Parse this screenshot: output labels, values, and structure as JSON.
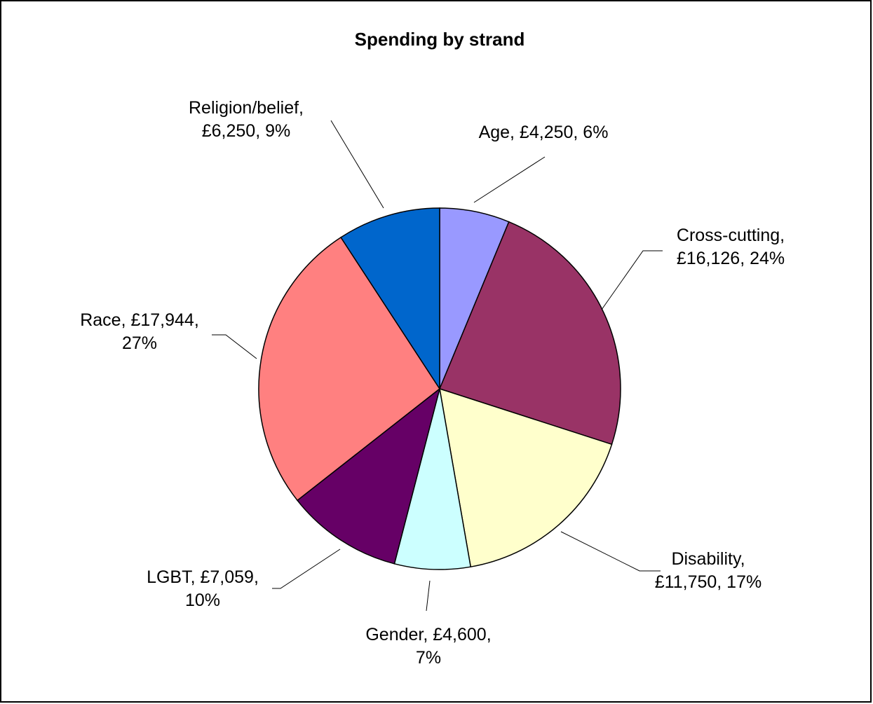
{
  "chart_data": {
    "type": "pie",
    "title": "Spending by strand",
    "start_angle_deg": 0,
    "direction": "clockwise",
    "legend": "none",
    "slices": [
      {
        "name": "Age",
        "value": 4250,
        "percent": "6%",
        "color": "#9999ff",
        "label_lines": [
          "Age, £4,250, 6%"
        ]
      },
      {
        "name": "Cross-cutting",
        "value": 16126,
        "percent": "24%",
        "color": "#993366",
        "label_lines": [
          "Cross-cutting,",
          "£16,126, 24%"
        ]
      },
      {
        "name": "Disability",
        "value": 11750,
        "percent": "17%",
        "color": "#ffffcc",
        "label_lines": [
          "Disability,",
          "£11,750, 17%"
        ]
      },
      {
        "name": "Gender",
        "value": 4600,
        "percent": "7%",
        "color": "#ccffff",
        "label_lines": [
          "Gender, £4,600,",
          "7%"
        ]
      },
      {
        "name": "LGBT",
        "value": 7059,
        "percent": "10%",
        "color": "#660066",
        "label_lines": [
          "LGBT, £7,059,",
          "10%"
        ]
      },
      {
        "name": "Race",
        "value": 17944,
        "percent": "27%",
        "color": "#ff8080",
        "label_lines": [
          "Race, £17,944,",
          "27%"
        ]
      },
      {
        "name": "Religion/belief",
        "value": 6250,
        "percent": "9%",
        "color": "#0066cc",
        "label_lines": [
          "Religion/belief,",
          "£6,250, 9%"
        ]
      }
    ]
  }
}
